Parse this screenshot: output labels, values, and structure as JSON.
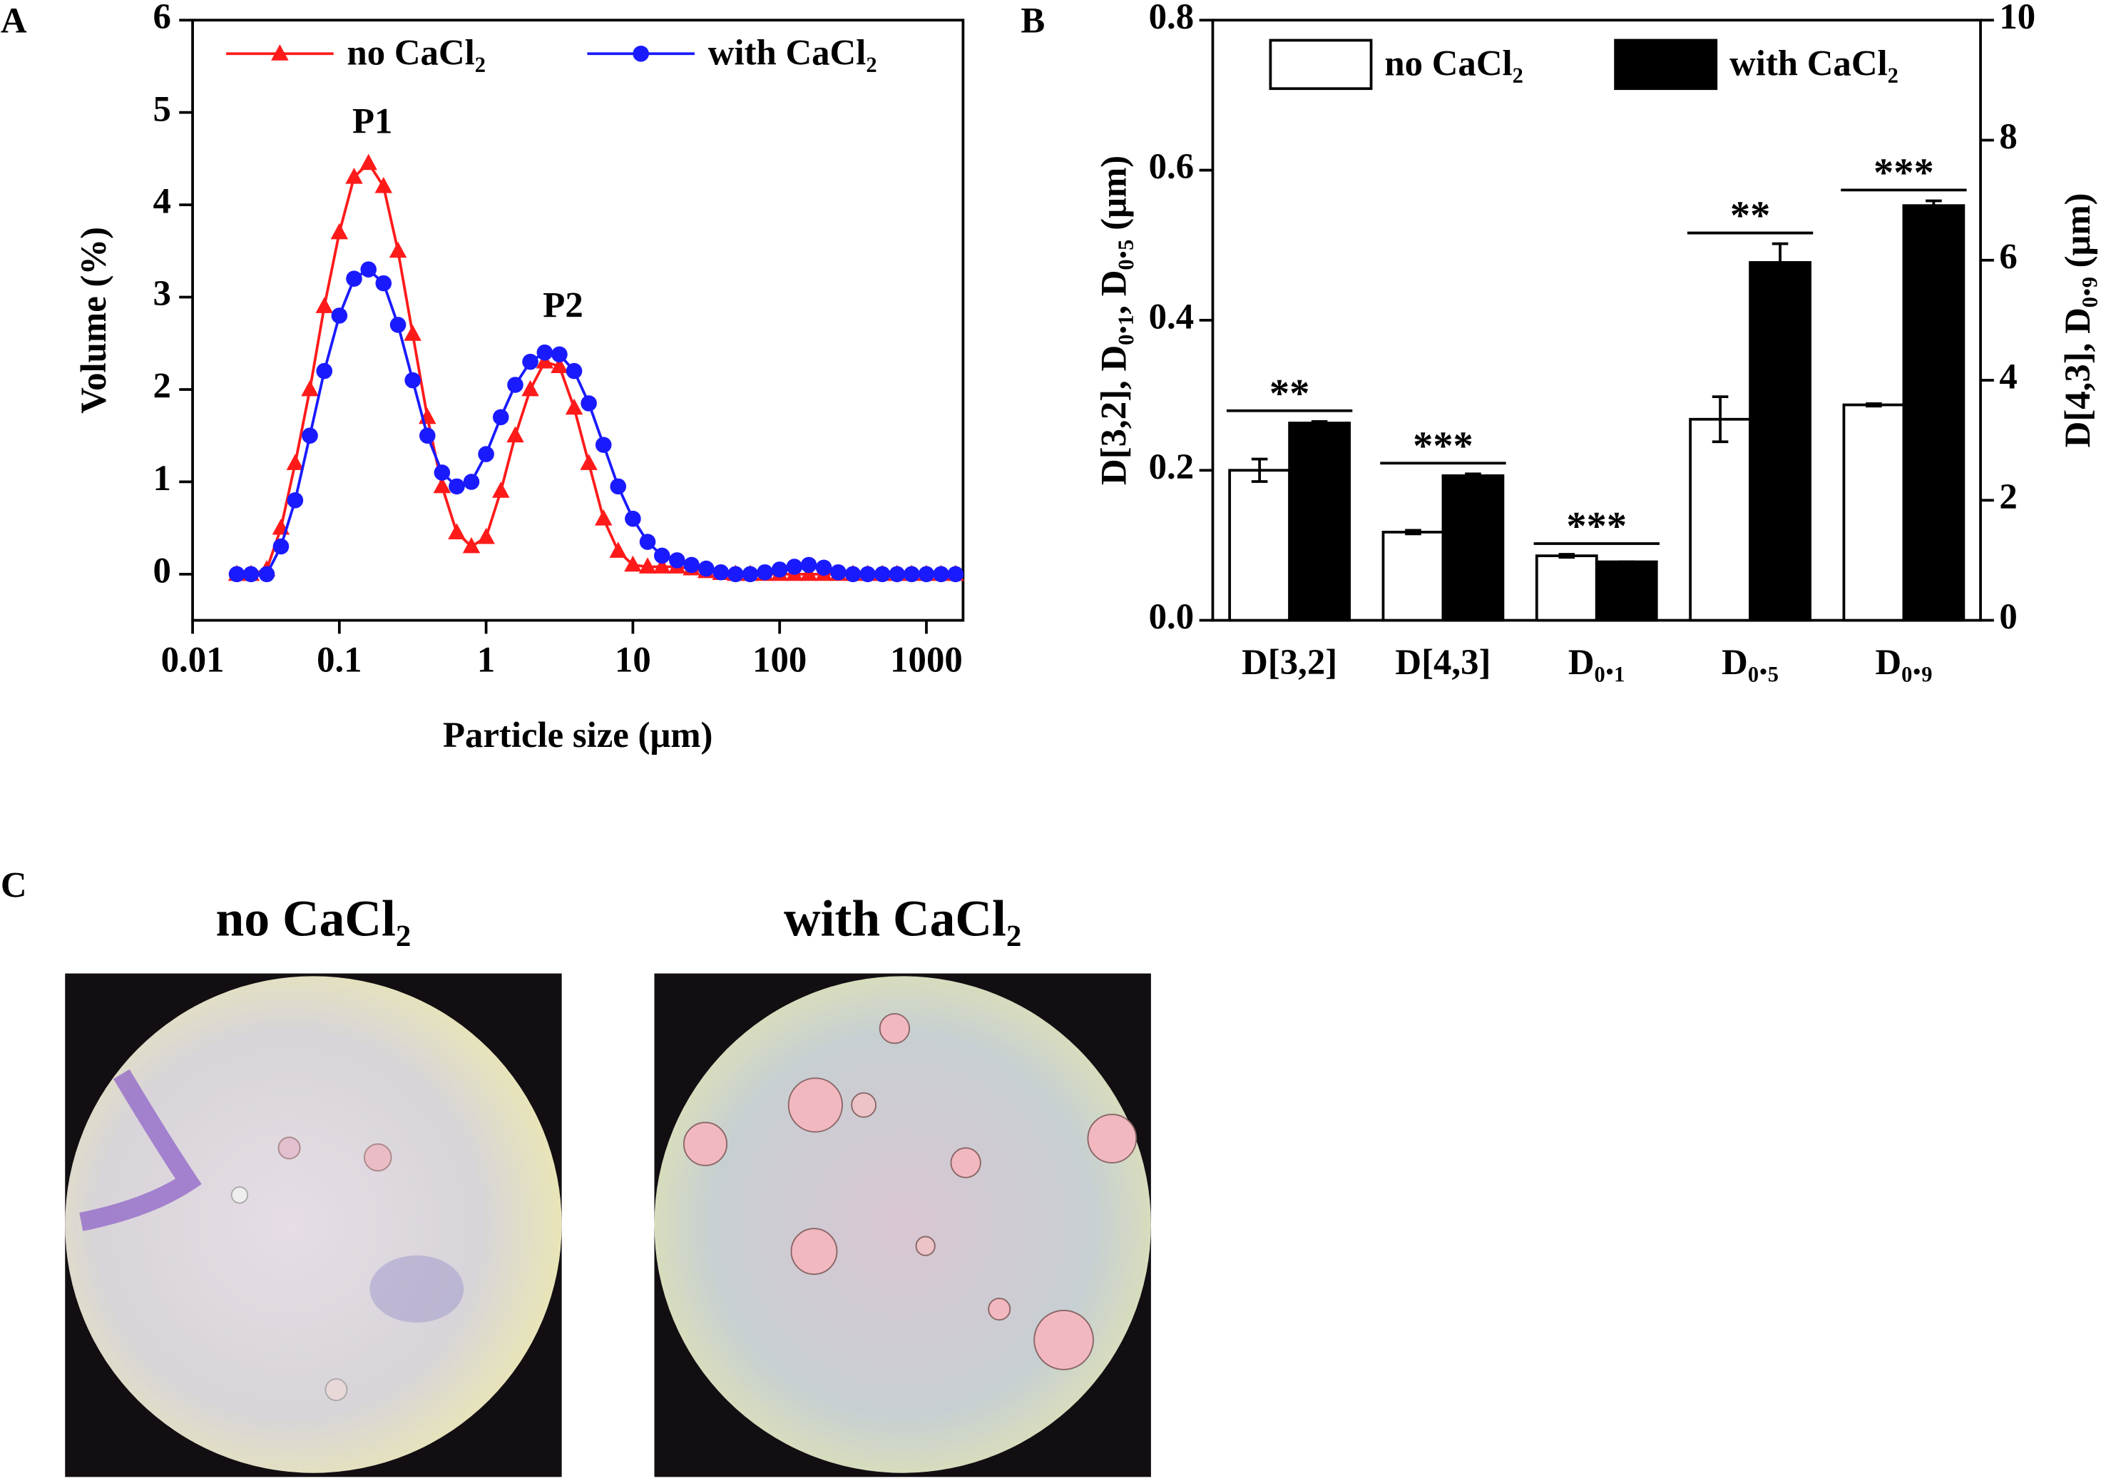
{
  "chart_data": [
    {
      "type": "line",
      "panel": "A",
      "xlabel": "Particle size (μm)",
      "ylabel": "Volume (%)",
      "xscale": "log",
      "xlim": [
        0.01,
        1778
      ],
      "xticks": [
        0.01,
        0.1,
        1,
        10,
        100,
        1000
      ],
      "ylim": [
        -0.5,
        6
      ],
      "yticks": [
        0,
        1,
        2,
        3,
        4,
        5,
        6
      ],
      "annotations": [
        "P1",
        "P2"
      ],
      "x": [
        0.02,
        0.025,
        0.032,
        0.04,
        0.05,
        0.063,
        0.079,
        0.1,
        0.126,
        0.158,
        0.2,
        0.251,
        0.316,
        0.398,
        0.501,
        0.631,
        0.794,
        1,
        1.26,
        1.58,
        2,
        2.51,
        3.16,
        3.98,
        5.01,
        6.31,
        7.94,
        10,
        12.6,
        15.8,
        20,
        25.1,
        31.6,
        39.8,
        50.1,
        63.1,
        79.4,
        100,
        126,
        158,
        200,
        251,
        316,
        398,
        501,
        631,
        794,
        1000,
        1260,
        1580
      ],
      "series": [
        {
          "name": "no CaCl₂",
          "color": "#ff1a1a",
          "marker": "triangle",
          "values": [
            0,
            0,
            0.05,
            0.5,
            1.2,
            2.0,
            2.9,
            3.7,
            4.3,
            4.45,
            4.2,
            3.5,
            2.6,
            1.7,
            0.95,
            0.45,
            0.3,
            0.4,
            0.9,
            1.5,
            2.0,
            2.3,
            2.25,
            1.8,
            1.2,
            0.6,
            0.25,
            0.1,
            0.08,
            0.08,
            0.08,
            0.06,
            0.03,
            0.01,
            0,
            0,
            0,
            0,
            0,
            0,
            0,
            0,
            0,
            0,
            0,
            0,
            0,
            0,
            0,
            0
          ]
        },
        {
          "name": "with CaCl₂",
          "color": "#1a1aff",
          "marker": "circle",
          "values": [
            0,
            0,
            0,
            0.3,
            0.8,
            1.5,
            2.2,
            2.8,
            3.2,
            3.3,
            3.15,
            2.7,
            2.1,
            1.5,
            1.1,
            0.95,
            1.0,
            1.3,
            1.7,
            2.05,
            2.3,
            2.4,
            2.38,
            2.2,
            1.85,
            1.4,
            0.95,
            0.6,
            0.35,
            0.2,
            0.15,
            0.1,
            0.06,
            0.02,
            0,
            0,
            0.02,
            0.05,
            0.08,
            0.1,
            0.07,
            0.02,
            0,
            0,
            0,
            0,
            0,
            0,
            0,
            0
          ]
        }
      ]
    },
    {
      "type": "bar",
      "panel": "B",
      "ylabel": "D[3,2], D₀.₁, D₀.₅ (μm)",
      "y2label": "D[4,3], D₀.₉ (μm)",
      "ylim": [
        0,
        0.8
      ],
      "yticks": [
        {
          "value": 0,
          "label": "0.0"
        },
        0.2,
        0.4,
        0.6,
        0.8
      ],
      "y2lim": [
        0,
        10
      ],
      "y2ticks": [
        0,
        2,
        4,
        6,
        8,
        10
      ],
      "categories": [
        "D[3,2]",
        "D[4,3]",
        "D₀.₁",
        "D₀.₅",
        "D₀.₉"
      ],
      "category_axis": [
        "y",
        "y2",
        "y",
        "y",
        "y2"
      ],
      "significance": [
        "**",
        "***",
        "***",
        "**",
        "***"
      ],
      "series": [
        {
          "name": "no CaCl₂",
          "color": "#ffffff",
          "values": [
            0.2,
            1.47,
            0.086,
            0.268,
            3.59
          ],
          "errors": [
            0.015,
            0.03,
            0.002,
            0.03,
            0.02
          ]
        },
        {
          "name": "with CaCl₂",
          "color": "#000000",
          "values": [
            0.263,
            2.41,
            0.078,
            0.477,
            6.91
          ],
          "errors": [
            0.002,
            0.03,
            0,
            0.025,
            0.08
          ]
        }
      ]
    }
  ],
  "panel_c": {
    "label": "C",
    "images": [
      {
        "title": "no CaCl₂"
      },
      {
        "title": "with CaCl₂"
      }
    ]
  }
}
